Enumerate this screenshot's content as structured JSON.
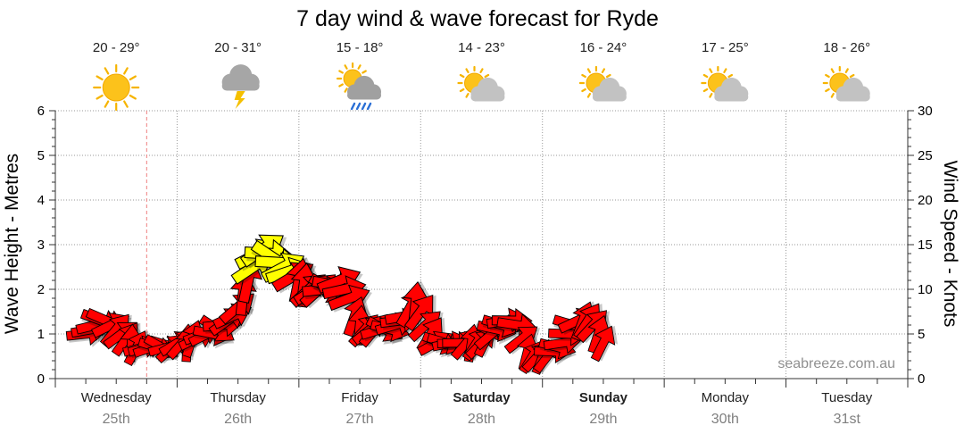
{
  "chart_data": {
    "type": "line",
    "title": "7 day wind & wave forecast for Ryde",
    "ylabel": "Wave Height - Metres",
    "y2label": "Wind Speed - Knots",
    "ylim": [
      0,
      6
    ],
    "y2lim": [
      0,
      30
    ],
    "y_ticks": [
      "0",
      "1",
      "2",
      "3",
      "4",
      "5",
      "6"
    ],
    "y2_ticks": [
      "0",
      "5",
      "10",
      "15",
      "20",
      "25",
      "30"
    ],
    "grid": true,
    "days": [
      {
        "day": "Wednesday",
        "date": "25th",
        "temp": "20 - 29°",
        "weather_icon": "sun-icon",
        "bold": false
      },
      {
        "day": "Thursday",
        "date": "26th",
        "temp": "20 - 31°",
        "weather_icon": "storm-cloud-icon",
        "bold": false
      },
      {
        "day": "Friday",
        "date": "27th",
        "temp": "15 - 18°",
        "weather_icon": "sun-cloud-rain-icon",
        "bold": false
      },
      {
        "day": "Saturday",
        "date": "28th",
        "temp": "14 - 23°",
        "weather_icon": "partly-cloudy-icon",
        "bold": true
      },
      {
        "day": "Sunday",
        "date": "29th",
        "temp": "16 - 24°",
        "weather_icon": "partly-cloudy-icon",
        "bold": true
      },
      {
        "day": "Monday",
        "date": "30th",
        "temp": "17 - 25°",
        "weather_icon": "partly-cloudy-icon",
        "bold": false
      },
      {
        "day": "Tuesday",
        "date": "31st",
        "temp": "18 - 26°",
        "weather_icon": "partly-cloudy-icon",
        "bold": false
      }
    ],
    "wind_series": {
      "name": "Wind",
      "unit": "knots",
      "start_hour": 6,
      "step_hours": 1,
      "values": [
        5,
        5.5,
        6,
        6.5,
        6.5,
        6,
        5.5,
        5,
        4.5,
        4,
        3.5,
        3.5,
        3.5,
        3.5,
        3.5,
        3.5,
        3.5,
        3.5,
        4,
        4,
        4,
        4.5,
        4.5,
        5,
        5,
        5,
        5.5,
        6,
        6.5,
        7,
        8,
        9.5,
        11,
        12.5,
        14,
        14.5,
        14,
        13.5,
        13,
        12.5,
        12,
        11.5,
        11,
        10.5,
        10,
        10,
        10,
        10,
        10,
        10.5,
        11,
        10,
        9,
        7,
        6,
        5.5,
        5.5,
        5.5,
        5.5,
        5.5,
        5.5,
        6,
        6.5,
        7,
        8,
        8.5,
        7.5,
        6,
        5,
        4,
        4,
        4,
        4,
        4,
        4,
        4,
        4,
        4,
        4,
        4.5,
        5,
        5.5,
        6,
        6.5,
        6.5,
        6,
        4.5,
        3,
        2.5,
        2.5,
        2.5,
        2.5,
        3,
        3.5,
        4,
        5,
        6,
        6.5,
        6.5,
        6.5,
        6,
        5,
        4
      ],
      "gust_threshold": 12,
      "colors": {
        "wind": "#ff0000",
        "strong_wind": "#ffff00",
        "outline": "#000000"
      }
    },
    "time_marker": {
      "day_fraction": 0.75,
      "color": "#f08080"
    },
    "watermark": "seabreeze.com.au"
  }
}
